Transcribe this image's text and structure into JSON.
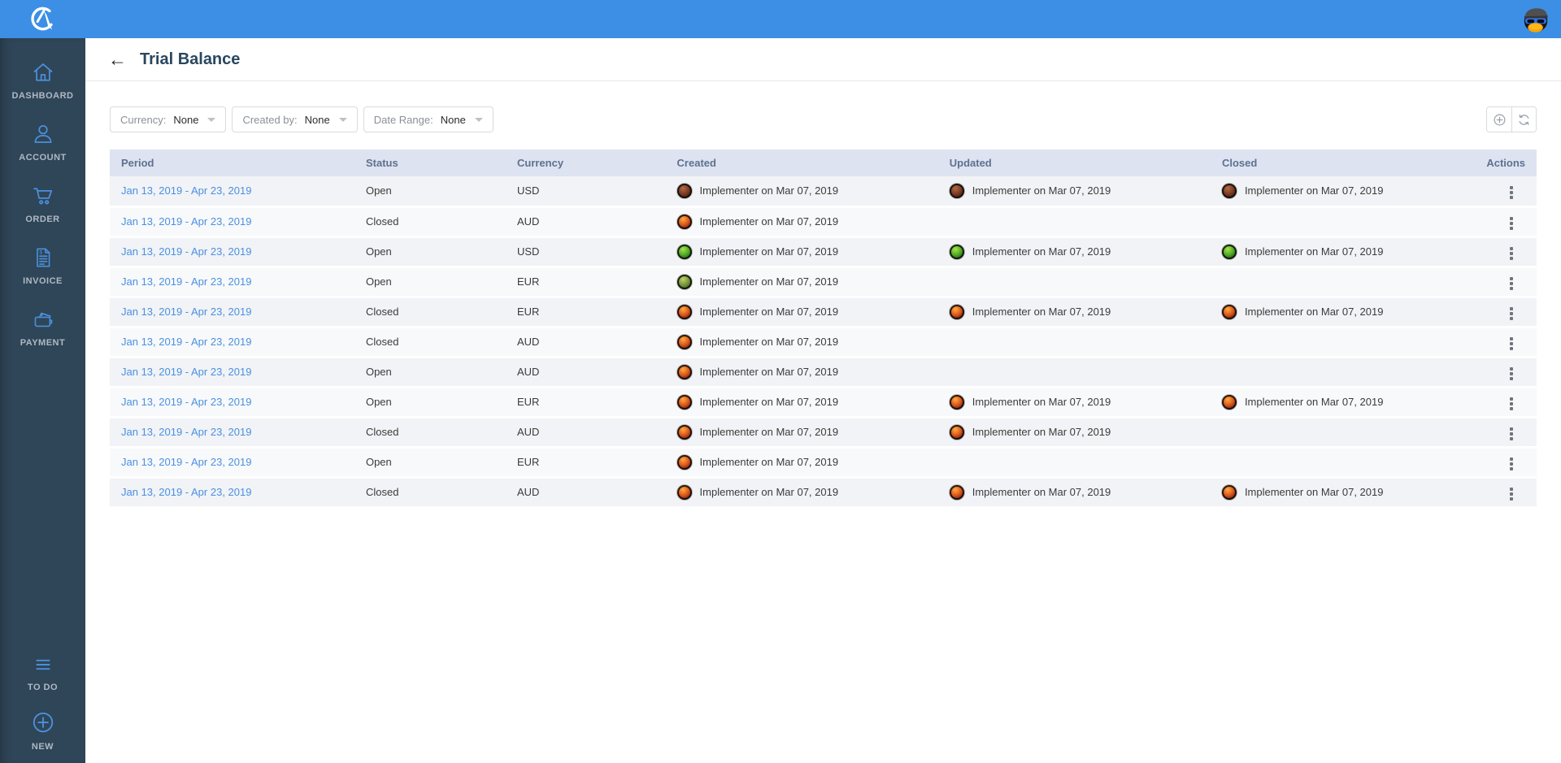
{
  "topbar": {
    "logo_icon": "compass-logo",
    "user_avatar_icon": "penguin-avatar"
  },
  "sidebar": {
    "items": [
      {
        "label": "DASHBOARD",
        "icon": "home-icon"
      },
      {
        "label": "ACCOUNT",
        "icon": "person-icon"
      },
      {
        "label": "ORDER",
        "icon": "cart-icon"
      },
      {
        "label": "INVOICE",
        "icon": "invoice-icon"
      },
      {
        "label": "PAYMENT",
        "icon": "wallet-icon"
      }
    ],
    "footer_items": [
      {
        "label": "TO DO",
        "icon": "hamburger-icon"
      },
      {
        "label": "NEW",
        "icon": "plus-circle-icon"
      }
    ]
  },
  "header": {
    "back_arrow": "←",
    "title": "Trial Balance"
  },
  "filters": [
    {
      "label": "Currency:",
      "value": "None"
    },
    {
      "label": "Created by:",
      "value": "None"
    },
    {
      "label": "Date Range:",
      "value": "None"
    }
  ],
  "toolbar": {
    "buttons": [
      {
        "name": "add-button",
        "icon": "plus-circle-icon"
      },
      {
        "name": "refresh-button",
        "icon": "refresh-icon"
      }
    ]
  },
  "table": {
    "columns": [
      "Period",
      "Status",
      "Currency",
      "Created",
      "Updated",
      "Closed",
      "Actions"
    ],
    "rows": [
      {
        "period": "Jan 13, 2019 - Apr 23, 2019",
        "status": "Open",
        "currency": "USD",
        "created": {
          "avatar": "maroon",
          "text": "Implementer on Mar 07, 2019"
        },
        "updated": {
          "avatar": "maroon",
          "text": "Implementer on Mar 07, 2019"
        },
        "closed": {
          "avatar": "maroon",
          "text": "Implementer on Mar 07, 2019"
        }
      },
      {
        "period": "Jan 13, 2019 - Apr 23, 2019",
        "status": "Closed",
        "currency": "AUD",
        "created": {
          "avatar": "red",
          "text": "Implementer on Mar 07, 2019"
        },
        "updated": null,
        "closed": null
      },
      {
        "period": "Jan 13, 2019 - Apr 23, 2019",
        "status": "Open",
        "currency": "USD",
        "created": {
          "avatar": "green",
          "text": "Implementer on Mar 07, 2019"
        },
        "updated": {
          "avatar": "green",
          "text": "Implementer on Mar 07, 2019"
        },
        "closed": {
          "avatar": "green",
          "text": "Implementer on Mar 07, 2019"
        }
      },
      {
        "period": "Jan 13, 2019 - Apr 23, 2019",
        "status": "Open",
        "currency": "EUR",
        "created": {
          "avatar": "olive",
          "text": "Implementer on Mar 07, 2019"
        },
        "updated": null,
        "closed": null
      },
      {
        "period": "Jan 13, 2019 - Apr 23, 2019",
        "status": "Closed",
        "currency": "EUR",
        "created": {
          "avatar": "red",
          "text": "Implementer on Mar 07, 2019"
        },
        "updated": {
          "avatar": "red",
          "text": "Implementer on Mar 07, 2019"
        },
        "closed": {
          "avatar": "red",
          "text": "Implementer on Mar 07, 2019"
        }
      },
      {
        "period": "Jan 13, 2019 - Apr 23, 2019",
        "status": "Closed",
        "currency": "AUD",
        "created": {
          "avatar": "red",
          "text": "Implementer on Mar 07, 2019"
        },
        "updated": null,
        "closed": null
      },
      {
        "period": "Jan 13, 2019 - Apr 23, 2019",
        "status": "Open",
        "currency": "AUD",
        "created": {
          "avatar": "red",
          "text": "Implementer on Mar 07, 2019"
        },
        "updated": null,
        "closed": null
      },
      {
        "period": "Jan 13, 2019 - Apr 23, 2019",
        "status": "Open",
        "currency": "EUR",
        "created": {
          "avatar": "red",
          "text": "Implementer on Mar 07, 2019"
        },
        "updated": {
          "avatar": "red",
          "text": "Implementer on Mar 07, 2019"
        },
        "closed": {
          "avatar": "red",
          "text": "Implementer on Mar 07, 2019"
        }
      },
      {
        "period": "Jan 13, 2019 - Apr 23, 2019",
        "status": "Closed",
        "currency": "AUD",
        "created": {
          "avatar": "red",
          "text": "Implementer on Mar 07, 2019"
        },
        "updated": {
          "avatar": "red",
          "text": "Implementer on Mar 07, 2019"
        },
        "closed": null
      },
      {
        "period": "Jan 13, 2019 - Apr 23, 2019",
        "status": "Open",
        "currency": "EUR",
        "created": {
          "avatar": "red",
          "text": "Implementer on Mar 07, 2019"
        },
        "updated": null,
        "closed": null
      },
      {
        "period": "Jan 13, 2019 - Apr 23, 2019",
        "status": "Closed",
        "currency": "AUD",
        "created": {
          "avatar": "red",
          "text": "Implementer on Mar 07, 2019"
        },
        "updated": {
          "avatar": "red",
          "text": "Implementer on Mar 07, 2019"
        },
        "closed": {
          "avatar": "red",
          "text": "Implementer on Mar 07, 2019"
        }
      }
    ]
  },
  "colors": {
    "topbar": "#3c8fe4",
    "sidebar": "#2f4558",
    "sidebar_icon": "#4a90d9",
    "table_header_bg": "#dde3f0",
    "link": "#4a90e2",
    "title": "#29475f"
  }
}
